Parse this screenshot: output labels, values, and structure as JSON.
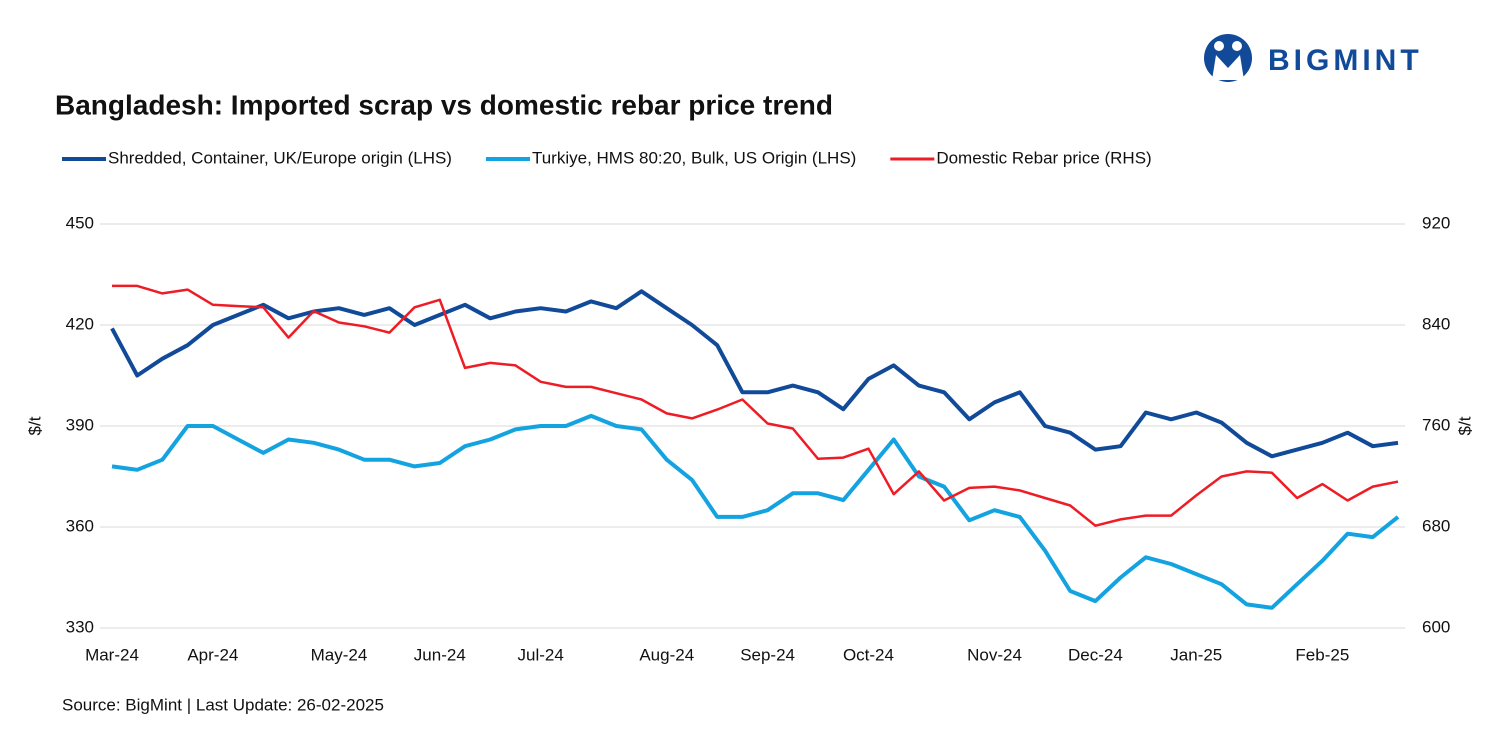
{
  "logo": "BIGMINT",
  "chart_data": {
    "type": "line",
    "title": "Bangladesh: Imported scrap vs domestic rebar price trend",
    "source": "Source: BigMint | Last Update: 26-02-2025",
    "y_label": "$/t",
    "y2_label": "$/t",
    "categories": [
      "Mar-24",
      null,
      null,
      null,
      "Apr-24",
      null,
      null,
      null,
      null,
      "May-24",
      null,
      null,
      null,
      "Jun-24",
      null,
      null,
      null,
      "Jul-24",
      null,
      null,
      null,
      null,
      "Aug-24",
      null,
      null,
      null,
      "Sep-24",
      null,
      null,
      null,
      "Oct-24",
      null,
      null,
      null,
      null,
      "Nov-24",
      null,
      null,
      null,
      "Dec-24",
      null,
      null,
      null,
      "Jan-25",
      null,
      null,
      null,
      null,
      "Feb-25",
      null,
      null,
      null
    ],
    "ylim": [
      330,
      450
    ],
    "yticks": [
      330,
      360,
      390,
      420,
      450
    ],
    "y2lim": [
      600,
      920
    ],
    "y2ticks": [
      600,
      680,
      760,
      840,
      920
    ],
    "grid": true,
    "series": [
      {
        "name": "Shredded, Container, UK/Europe origin (LHS)",
        "color": "#114a99",
        "values": [
          419,
          405,
          410,
          414,
          420,
          423,
          426,
          422,
          424,
          425,
          423,
          425,
          420,
          423,
          426,
          422,
          424,
          425,
          424,
          427,
          425,
          430,
          425,
          420,
          414,
          400,
          400,
          402,
          400,
          395,
          404,
          408,
          402,
          400,
          392,
          397,
          400,
          390,
          388,
          383,
          384,
          394,
          392,
          394,
          391,
          385,
          381,
          383,
          385,
          388,
          384,
          385
        ]
      },
      {
        "name": "Turkiye, HMS 80:20, Bulk, US Origin (LHS)",
        "color": "#13a3e0",
        "values": [
          378,
          377,
          380,
          390,
          390,
          386,
          382,
          386,
          385,
          383,
          380,
          380,
          378,
          379,
          384,
          386,
          389,
          390,
          390,
          393,
          390,
          389,
          380,
          374,
          363,
          363,
          365,
          370,
          370,
          368,
          377,
          386,
          375,
          372,
          362,
          365,
          363,
          353,
          341,
          338,
          345,
          351,
          349,
          346,
          343,
          337,
          336,
          343,
          350,
          358,
          357,
          363
        ]
      },
      {
        "name": "Domestic Rebar price (RHS)",
        "color": "#ee1c25",
        "axis": "y2",
        "values": [
          871,
          871,
          865,
          868,
          856,
          855,
          854,
          830,
          851,
          842,
          839,
          834,
          854,
          860,
          806,
          810,
          808,
          795,
          791,
          791,
          786,
          781,
          770,
          766,
          773,
          781,
          762,
          758,
          734,
          735,
          742,
          706,
          724,
          701,
          711,
          712,
          709,
          703,
          697,
          681,
          686,
          689,
          689,
          705,
          720,
          724,
          723,
          703,
          714,
          701,
          712,
          716
        ]
      }
    ]
  }
}
